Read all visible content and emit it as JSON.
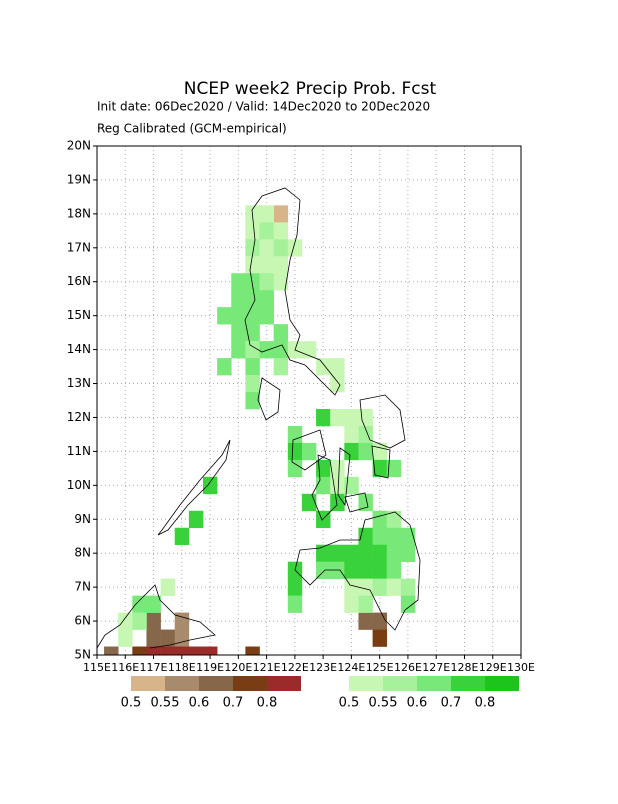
{
  "chart_data": {
    "type": "gridmap",
    "title": "NCEP week2 Precip Prob. Fcst",
    "subtitle": "Init date: 06Dec2020 / Valid: 14Dec2020 to 20Dec2020",
    "note": "Reg Calibrated (GCM-empirical)",
    "xlim": [
      115,
      130
    ],
    "ylim": [
      5,
      20
    ],
    "xticks": [
      {
        "value": 115,
        "label": "115E"
      },
      {
        "value": 116,
        "label": "116E"
      },
      {
        "value": 117,
        "label": "117E"
      },
      {
        "value": 118,
        "label": "118E"
      },
      {
        "value": 119,
        "label": "119E"
      },
      {
        "value": 120,
        "label": "120E"
      },
      {
        "value": 121,
        "label": "121E"
      },
      {
        "value": 122,
        "label": "122E"
      },
      {
        "value": 123,
        "label": "123E"
      },
      {
        "value": 124,
        "label": "124E"
      },
      {
        "value": 125,
        "label": "125E"
      },
      {
        "value": 126,
        "label": "126E"
      },
      {
        "value": 127,
        "label": "127E"
      },
      {
        "value": 128,
        "label": "128E"
      },
      {
        "value": 129,
        "label": "129E"
      },
      {
        "value": 130,
        "label": "130E"
      }
    ],
    "yticks": [
      {
        "value": 5,
        "label": "5N"
      },
      {
        "value": 6,
        "label": "6N"
      },
      {
        "value": 7,
        "label": "7N"
      },
      {
        "value": 8,
        "label": "8N"
      },
      {
        "value": 9,
        "label": "9N"
      },
      {
        "value": 10,
        "label": "10N"
      },
      {
        "value": 11,
        "label": "11N"
      },
      {
        "value": 12,
        "label": "12N"
      },
      {
        "value": 13,
        "label": "13N"
      },
      {
        "value": 14,
        "label": "14N"
      },
      {
        "value": 15,
        "label": "15N"
      },
      {
        "value": 16,
        "label": "16N"
      },
      {
        "value": 17,
        "label": "17N"
      },
      {
        "value": 18,
        "label": "18N"
      },
      {
        "value": 19,
        "label": "19N"
      },
      {
        "value": 20,
        "label": "20N"
      }
    ],
    "grid": true,
    "below_legend": {
      "levels": [
        0.5,
        0.55,
        0.6,
        0.7,
        0.8
      ],
      "colors": [
        "#d8b48a",
        "#a88b6c",
        "#87674a",
        "#7a3c12",
        "#9b2a2a"
      ]
    },
    "above_legend": {
      "levels": [
        0.5,
        0.55,
        0.6,
        0.7,
        0.8
      ],
      "colors": [
        "#c8f7b4",
        "#a6f29a",
        "#78e878",
        "#3ad23a",
        "#1cc41c"
      ]
    },
    "above": {
      "lon": [
        120.5,
        121,
        120.5,
        121,
        121.5,
        120.5,
        121,
        121.5,
        122,
        120.5,
        121,
        121.5,
        120,
        120.5,
        121,
        121.5,
        120,
        120.5,
        121,
        119.5,
        120,
        120.5,
        121,
        120,
        120.5,
        121.5,
        120,
        120.5,
        121,
        121.5,
        122,
        122.5,
        119.5,
        120.5,
        121.5,
        123,
        123.5,
        120.5,
        123.5,
        120.5,
        123,
        123.5,
        124,
        124.5,
        122,
        124,
        124.5,
        122,
        122.5,
        124,
        124.5,
        125,
        122,
        123,
        123.5,
        125,
        125.5,
        123,
        123.5,
        124,
        122.5,
        123.5,
        124.5,
        123,
        125,
        125.5,
        124.5,
        125,
        125.5,
        126,
        123,
        123.5,
        124,
        124.5,
        125,
        125.5,
        126,
        122,
        123,
        123.5,
        124,
        124.5,
        125,
        125.5,
        122,
        124,
        124.5,
        125,
        125.5,
        126,
        122,
        124,
        124.5,
        126,
        119,
        118.5,
        118,
        117.5,
        116.5,
        117,
        116,
        116.5,
        116
      ],
      "lat": [
        18,
        18,
        17.5,
        17.5,
        17.5,
        17,
        17,
        17,
        17,
        16.5,
        16.5,
        16.5,
        16,
        16,
        16,
        16,
        15.5,
        15.5,
        15.5,
        15,
        15,
        15,
        15,
        14.5,
        14.5,
        14.5,
        14,
        14,
        14,
        14,
        14,
        14,
        13.5,
        13.5,
        13.5,
        13.5,
        13.5,
        13,
        13,
        12.5,
        12,
        12,
        12,
        12,
        11.5,
        11.5,
        11.5,
        11,
        11,
        11,
        11,
        11,
        10.5,
        10.5,
        10.5,
        10.5,
        10.5,
        10,
        10,
        10,
        9.5,
        9.5,
        9.5,
        9,
        9,
        9,
        8.5,
        8.5,
        8.5,
        8.5,
        8,
        8,
        8,
        8,
        8,
        8,
        8,
        7.5,
        7.5,
        7.5,
        7.5,
        7.5,
        7.5,
        7.5,
        7,
        7,
        7,
        7,
        7,
        7,
        6.5,
        6.5,
        6.5,
        6.5,
        10,
        9,
        8.5,
        7,
        6.5,
        6.5,
        6,
        6,
        5.5
      ],
      "values": [
        0.52,
        0.52,
        0.52,
        0.57,
        0.52,
        0.57,
        0.52,
        0.57,
        0.52,
        0.52,
        0.52,
        0.52,
        0.65,
        0.65,
        0.57,
        0.52,
        0.65,
        0.65,
        0.65,
        0.65,
        0.65,
        0.65,
        0.65,
        0.65,
        0.65,
        0.65,
        0.65,
        0.57,
        0.65,
        0.65,
        0.52,
        0.52,
        0.65,
        0.65,
        0.57,
        0.52,
        0.52,
        0.57,
        0.52,
        0.65,
        0.75,
        0.52,
        0.52,
        0.52,
        0.65,
        0.52,
        0.57,
        0.75,
        0.65,
        0.75,
        0.65,
        0.52,
        0.65,
        0.75,
        0.52,
        0.75,
        0.65,
        0.65,
        0.52,
        0.57,
        0.75,
        0.75,
        0.65,
        0.75,
        0.65,
        0.57,
        0.75,
        0.65,
        0.65,
        0.65,
        0.75,
        0.75,
        0.75,
        0.75,
        0.75,
        0.65,
        0.65,
        0.75,
        0.65,
        0.65,
        0.75,
        0.75,
        0.75,
        0.65,
        0.75,
        0.52,
        0.52,
        0.57,
        0.52,
        0.57,
        0.65,
        0.52,
        0.57,
        0.65,
        0.75,
        0.75,
        0.75,
        0.52,
        0.65,
        0.65,
        0.52,
        0.57,
        0.52
      ]
    },
    "below": {
      "lon": [
        121.5,
        117,
        117,
        117.5,
        118,
        118,
        116.5,
        117,
        117.5,
        118,
        118.5,
        119,
        115.5,
        120.5,
        124.5,
        125,
        125
      ],
      "lat": [
        18,
        6,
        5.5,
        5.5,
        5.5,
        6,
        5,
        5,
        5,
        5,
        5,
        5,
        5,
        5,
        6,
        6,
        5.5
      ],
      "values": [
        0.52,
        0.65,
        0.65,
        0.65,
        0.57,
        0.57,
        0.75,
        0.85,
        0.85,
        0.85,
        0.85,
        0.85,
        0.65,
        0.75,
        0.65,
        0.65,
        0.75
      ]
    }
  }
}
